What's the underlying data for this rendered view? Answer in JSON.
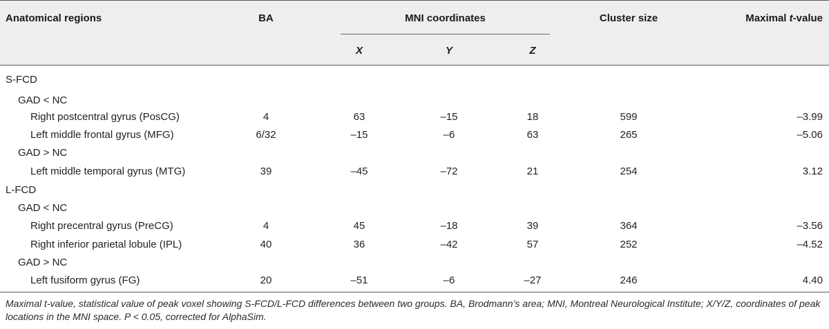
{
  "header": {
    "regions": "Anatomical regions",
    "ba": "BA",
    "mni": "MNI coordinates",
    "x": "X",
    "y": "Y",
    "z": "Z",
    "cluster": "Cluster size",
    "tmax_prefix": "Maximal ",
    "tmax_italic": "t",
    "tmax_suffix": "-value"
  },
  "rows": [
    {
      "name": "S-FCD",
      "ba": "",
      "x": "",
      "y": "",
      "z": "",
      "size": "",
      "t": ""
    },
    {
      "name": "GAD < NC",
      "ba": "",
      "x": "",
      "y": "",
      "z": "",
      "size": "",
      "t": ""
    },
    {
      "name": "Right postcentral gyrus (PosCG)",
      "ba": "4",
      "x": "63",
      "y": "–15",
      "z": "18",
      "size": "599",
      "t": "–3.99"
    },
    {
      "name": "Left middle frontal gyrus (MFG)",
      "ba": "6/32",
      "x": "–15",
      "y": "–6",
      "z": "63",
      "size": "265",
      "t": "–5.06"
    },
    {
      "name": "GAD > NC",
      "ba": "",
      "x": "",
      "y": "",
      "z": "",
      "size": "",
      "t": ""
    },
    {
      "name": "Left middle temporal gyrus (MTG)",
      "ba": "39",
      "x": "–45",
      "y": "–72",
      "z": "21",
      "size": "254",
      "t": "3.12"
    },
    {
      "name": "L-FCD",
      "ba": "",
      "x": "",
      "y": "",
      "z": "",
      "size": "",
      "t": ""
    },
    {
      "name": "GAD < NC",
      "ba": "",
      "x": "",
      "y": "",
      "z": "",
      "size": "",
      "t": ""
    },
    {
      "name": "Right precentral gyrus (PreCG)",
      "ba": "4",
      "x": "45",
      "y": "–18",
      "z": "39",
      "size": "364",
      "t": "–3.56"
    },
    {
      "name": "Right inferior parietal lobule (IPL)",
      "ba": "40",
      "x": "36",
      "y": "–42",
      "z": "57",
      "size": "252",
      "t": "–4.52"
    },
    {
      "name": "GAD > NC",
      "ba": "",
      "x": "",
      "y": "",
      "z": "",
      "size": "",
      "t": ""
    },
    {
      "name": "Left fusiform gyrus (FG)",
      "ba": "20",
      "x": "–51",
      "y": "–6",
      "z": "–27",
      "size": "246",
      "t": "4.40"
    }
  ],
  "footnote": "Maximal t-value, statistical value of peak voxel showing S-FCD/L-FCD differences between two groups. BA, Brodmann’s area; MNI, Montreal Neurological Institute; X/Y/Z, coordinates of peak locations in the MNI space. P < 0.05, corrected for AlphaSim."
}
